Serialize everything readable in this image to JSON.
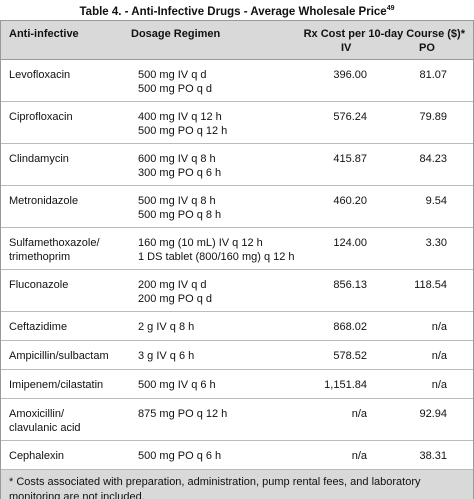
{
  "header": {
    "title": "Table 4. - Anti-Infective Drugs - Average Wholesale Price",
    "title_ref": "49"
  },
  "table": {
    "columns": {
      "drug": "Anti-infective",
      "dosage": "Dosage Regimen",
      "cost": "Rx Cost per 10-day Course ($)*",
      "iv": "IV",
      "po": "PO"
    },
    "rows": [
      {
        "drug": [
          "Levofloxacin"
        ],
        "dosage": [
          "500 mg IV q d",
          "500 mg PO q d"
        ],
        "iv": "396.00",
        "po": "81.07"
      },
      {
        "drug": [
          "Ciprofloxacin"
        ],
        "dosage": [
          "400 mg IV q 12 h",
          "500 mg PO q 12 h"
        ],
        "iv": "576.24",
        "po": "79.89"
      },
      {
        "drug": [
          "Clindamycin"
        ],
        "dosage": [
          "600 mg IV q 8 h",
          "300 mg PO q 6 h"
        ],
        "iv": "415.87",
        "po": "84.23"
      },
      {
        "drug": [
          "Metronidazole"
        ],
        "dosage": [
          "500 mg IV q 8 h",
          "500 mg PO q 8 h"
        ],
        "iv": "460.20",
        "po": "9.54"
      },
      {
        "drug": [
          "Sulfamethoxazole/",
          "trimethoprim"
        ],
        "dosage": [
          "160 mg (10 mL) IV q 12 h",
          "1 DS tablet (800/160 mg) q 12 h"
        ],
        "iv": "124.00",
        "po": "3.30"
      },
      {
        "drug": [
          "Fluconazole"
        ],
        "dosage": [
          "200 mg IV q d",
          "200 mg PO q d"
        ],
        "iv": "856.13",
        "po": "118.54"
      },
      {
        "drug": [
          "Ceftazidime"
        ],
        "dosage": [
          "2 g IV q 8 h"
        ],
        "iv": "868.02",
        "po": "n/a"
      },
      {
        "drug": [
          "Ampicillin/sulbactam"
        ],
        "dosage": [
          "3 g IV q 6 h"
        ],
        "iv": "578.52",
        "po": "n/a"
      },
      {
        "drug": [
          "Imipenem/cilastatin"
        ],
        "dosage": [
          "500 mg IV q 6 h"
        ],
        "iv": "1,151.84",
        "po": "n/a"
      },
      {
        "drug": [
          "Amoxicillin/",
          "clavulanic acid"
        ],
        "dosage": [
          "875 mg PO q 12 h"
        ],
        "iv": "n/a",
        "po": "92.94"
      },
      {
        "drug": [
          "Cephalexin"
        ],
        "dosage": [
          "500 mg PO q 6 h"
        ],
        "iv": "n/a",
        "po": "38.31"
      }
    ],
    "footnote": "* Costs associated with preparation, administration, pump rental fees, and laboratory monitoring are not included."
  }
}
